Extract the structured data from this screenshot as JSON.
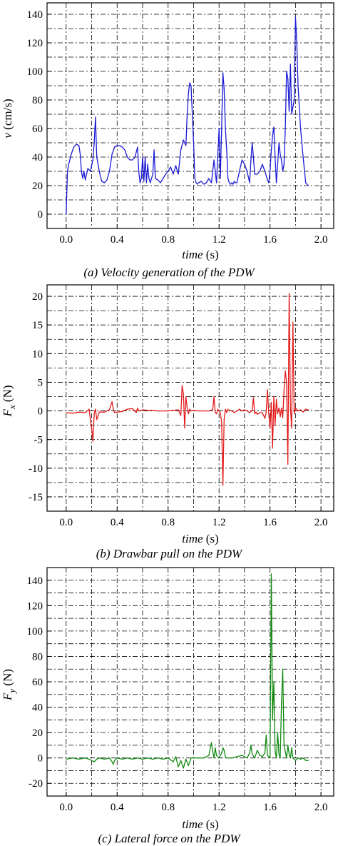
{
  "chart_data": [
    {
      "type": "line",
      "caption": "(a) Velocity generation of the PDW",
      "xlabel": "time (s)",
      "xlabel_italic": "time",
      "xlabel_unit": " (s)",
      "ylabel": "v (cm/s)",
      "ylabel_italic": "v",
      "ylabel_unit": " (cm/s)",
      "xlim": [
        -0.15,
        2.1
      ],
      "ylim": [
        -10,
        148
      ],
      "xticks": [
        "0.0",
        "0.4",
        "0.8",
        "1.2",
        "1.6",
        "2.0"
      ],
      "yticks": [
        "0",
        "20",
        "40",
        "60",
        "80",
        "100",
        "120",
        "140"
      ],
      "grid_x": [
        0.0,
        0.2,
        0.4,
        0.6,
        0.8,
        1.0,
        1.2,
        1.4,
        1.6,
        1.8,
        2.0
      ],
      "grid_y": [
        0,
        10,
        20,
        30,
        40,
        50,
        60,
        70,
        80,
        90,
        100,
        110,
        120,
        130,
        140
      ],
      "grid": true,
      "series": [
        {
          "color": "#1a1ad6",
          "x": [
            0.0,
            0.01,
            0.02,
            0.04,
            0.06,
            0.08,
            0.1,
            0.11,
            0.12,
            0.13,
            0.14,
            0.15,
            0.17,
            0.19,
            0.2,
            0.21,
            0.22,
            0.23,
            0.24,
            0.25,
            0.26,
            0.27,
            0.28,
            0.3,
            0.32,
            0.34,
            0.36,
            0.38,
            0.4,
            0.42,
            0.44,
            0.46,
            0.48,
            0.5,
            0.52,
            0.54,
            0.56,
            0.57,
            0.58,
            0.59,
            0.6,
            0.61,
            0.62,
            0.63,
            0.64,
            0.65,
            0.66,
            0.68,
            0.69,
            0.7,
            0.72,
            0.74,
            0.76,
            0.78,
            0.8,
            0.82,
            0.84,
            0.86,
            0.88,
            0.9,
            0.92,
            0.94,
            0.95,
            0.96,
            0.97,
            0.98,
            0.99,
            1.0,
            1.01,
            1.02,
            1.03,
            1.04,
            1.06,
            1.08,
            1.1,
            1.12,
            1.14,
            1.16,
            1.18,
            1.2,
            1.21,
            1.22,
            1.23,
            1.24,
            1.25,
            1.26,
            1.27,
            1.28,
            1.29,
            1.3,
            1.31,
            1.32,
            1.33,
            1.34,
            1.36,
            1.38,
            1.4,
            1.42,
            1.44,
            1.45,
            1.46,
            1.47,
            1.48,
            1.5,
            1.52,
            1.54,
            1.56,
            1.58,
            1.59,
            1.6,
            1.61,
            1.62,
            1.63,
            1.64,
            1.65,
            1.66,
            1.67,
            1.68,
            1.69,
            1.7,
            1.71,
            1.72,
            1.73,
            1.74,
            1.75,
            1.76,
            1.77,
            1.78,
            1.79,
            1.8,
            1.81,
            1.82,
            1.84,
            1.86,
            1.88,
            1.9
          ],
          "y": [
            0,
            30,
            35,
            42,
            47,
            49,
            48,
            42,
            30,
            25,
            30,
            24,
            32,
            30,
            34,
            38,
            50,
            68,
            40,
            35,
            30,
            26,
            23,
            22,
            24,
            30,
            42,
            47,
            48,
            48,
            47,
            45,
            40,
            38,
            38,
            40,
            47,
            30,
            22,
            25,
            40,
            23,
            40,
            22,
            35,
            25,
            22,
            28,
            45,
            25,
            24,
            22,
            25,
            28,
            30,
            33,
            28,
            34,
            28,
            45,
            52,
            48,
            70,
            85,
            92,
            90,
            70,
            50,
            25,
            22,
            21,
            22,
            23,
            21,
            22,
            25,
            22,
            38,
            22,
            60,
            25,
            60,
            99,
            88,
            60,
            45,
            25,
            22,
            21,
            22,
            21,
            23,
            22,
            22,
            30,
            38,
            35,
            30,
            22,
            38,
            50,
            40,
            28,
            28,
            30,
            35,
            30,
            24,
            22,
            30,
            45,
            55,
            61,
            40,
            22,
            35,
            50,
            42,
            38,
            30,
            35,
            60,
            100,
            95,
            72,
            105,
            70,
            75,
            80,
            138,
            120,
            90,
            60,
            40,
            22,
            20
          ]
        }
      ]
    },
    {
      "type": "line",
      "caption": "(b) Drawbar pull on the PDW",
      "xlabel": "time (s)",
      "xlabel_italic": "time",
      "xlabel_unit": " (s)",
      "ylabel": "Fx (N)",
      "ylabel_italic": "F",
      "ylabel_sub": "x",
      "ylabel_unit": " (N)",
      "xlim": [
        -0.15,
        2.1
      ],
      "ylim": [
        -17.5,
        22
      ],
      "xticks": [
        "0.0",
        "0.4",
        "0.8",
        "1.2",
        "1.6",
        "2.0"
      ],
      "yticks": [
        "-15",
        "-10",
        "-5",
        "0",
        "5",
        "10",
        "15",
        "20"
      ],
      "grid_x": [
        0.0,
        0.2,
        0.4,
        0.6,
        0.8,
        1.0,
        1.2,
        1.4,
        1.6,
        1.8,
        2.0
      ],
      "grid_y": [
        -15,
        -12.5,
        -10,
        -7.5,
        -5,
        -2.5,
        0,
        2.5,
        5,
        7.5,
        10,
        12.5,
        15,
        17.5,
        20
      ],
      "grid": true,
      "series": [
        {
          "color": "#e31a1a",
          "x": [
            0.0,
            0.05,
            0.1,
            0.15,
            0.18,
            0.19,
            0.2,
            0.21,
            0.22,
            0.23,
            0.24,
            0.26,
            0.3,
            0.34,
            0.36,
            0.37,
            0.38,
            0.4,
            0.44,
            0.48,
            0.52,
            0.55,
            0.56,
            0.57,
            0.6,
            0.64,
            0.68,
            0.72,
            0.76,
            0.8,
            0.84,
            0.88,
            0.9,
            0.91,
            0.92,
            0.93,
            0.94,
            0.95,
            0.96,
            0.97,
            0.98,
            1.0,
            1.04,
            1.08,
            1.12,
            1.15,
            1.16,
            1.17,
            1.18,
            1.19,
            1.2,
            1.21,
            1.22,
            1.23,
            1.24,
            1.25,
            1.26,
            1.27,
            1.28,
            1.3,
            1.32,
            1.34,
            1.36,
            1.38,
            1.4,
            1.42,
            1.44,
            1.46,
            1.47,
            1.48,
            1.49,
            1.5,
            1.52,
            1.54,
            1.56,
            1.57,
            1.58,
            1.59,
            1.6,
            1.61,
            1.62,
            1.63,
            1.64,
            1.65,
            1.66,
            1.67,
            1.68,
            1.69,
            1.7,
            1.71,
            1.72,
            1.73,
            1.74,
            1.75,
            1.76,
            1.77,
            1.78,
            1.79,
            1.8,
            1.82,
            1.84,
            1.86,
            1.88,
            1.9
          ],
          "y": [
            -0.3,
            -0.4,
            -0.2,
            -0.3,
            0.3,
            -1.5,
            -3.0,
            -5.3,
            -0.5,
            0.3,
            -1.5,
            -0.2,
            -0.2,
            0.2,
            1.6,
            0.3,
            -0.3,
            -0.2,
            -0.1,
            0.3,
            0.4,
            -0.3,
            0.5,
            0.0,
            0.2,
            0.1,
            0.1,
            0.0,
            0.0,
            0.0,
            0.1,
            0.2,
            -0.8,
            4.4,
            3.0,
            -3.0,
            2.5,
            0.5,
            -0.5,
            0.3,
            0.0,
            0.1,
            0.0,
            0.0,
            0.0,
            0.2,
            2.5,
            -0.3,
            -0.5,
            0.3,
            0.0,
            -0.3,
            -2.0,
            -13.0,
            -1.5,
            0.3,
            -0.3,
            0.3,
            0.1,
            0.0,
            -0.3,
            0.0,
            0.3,
            0.0,
            0.2,
            0.0,
            -0.3,
            0.1,
            2.3,
            -0.5,
            -0.2,
            -0.6,
            -0.3,
            -0.3,
            -1.3,
            -0.2,
            3.7,
            -0.5,
            -3.0,
            1.5,
            -6.5,
            2.5,
            -2.5,
            2.0,
            -0.5,
            0.5,
            -1.0,
            0.5,
            -1.2,
            3.5,
            7.0,
            5.0,
            -9.3,
            20.5,
            0.5,
            -3.0,
            15.5,
            -0.5,
            0.5,
            0.0,
            0.2,
            -0.2,
            0.3,
            0.2
          ]
        }
      ]
    },
    {
      "type": "line",
      "caption": "(c) Lateral force on the PDW",
      "xlabel": "time (s)",
      "xlabel_italic": "time",
      "xlabel_unit": " (s)",
      "ylabel": "Fy (N)",
      "ylabel_italic": "F",
      "ylabel_sub": "y",
      "ylabel_unit": " (N)",
      "xlim": [
        -0.15,
        2.1
      ],
      "ylim": [
        -30,
        150
      ],
      "xticks": [
        "0.0",
        "0.4",
        "0.8",
        "1.2",
        "1.6",
        "2.0"
      ],
      "yticks": [
        "-20",
        "0",
        "20",
        "40",
        "60",
        "80",
        "100",
        "120",
        "140"
      ],
      "grid_x": [
        0.0,
        0.2,
        0.4,
        0.6,
        0.8,
        1.0,
        1.2,
        1.4,
        1.6,
        1.8,
        2.0
      ],
      "grid_y": [
        -20,
        -10,
        0,
        10,
        20,
        30,
        40,
        50,
        60,
        70,
        80,
        90,
        100,
        110,
        120,
        130,
        140
      ],
      "grid": true,
      "series": [
        {
          "color": "#0f8a0f",
          "x": [
            0.0,
            0.05,
            0.1,
            0.15,
            0.18,
            0.2,
            0.22,
            0.24,
            0.26,
            0.3,
            0.34,
            0.36,
            0.37,
            0.38,
            0.4,
            0.44,
            0.48,
            0.52,
            0.56,
            0.6,
            0.64,
            0.68,
            0.72,
            0.76,
            0.8,
            0.84,
            0.86,
            0.88,
            0.9,
            0.92,
            0.94,
            0.96,
            0.98,
            1.0,
            1.04,
            1.08,
            1.12,
            1.14,
            1.15,
            1.16,
            1.17,
            1.18,
            1.2,
            1.22,
            1.23,
            1.24,
            1.25,
            1.26,
            1.28,
            1.3,
            1.34,
            1.38,
            1.42,
            1.44,
            1.45,
            1.46,
            1.48,
            1.5,
            1.52,
            1.54,
            1.56,
            1.57,
            1.58,
            1.6,
            1.61,
            1.62,
            1.63,
            1.64,
            1.65,
            1.66,
            1.67,
            1.68,
            1.69,
            1.7,
            1.71,
            1.72,
            1.73,
            1.74,
            1.75,
            1.76,
            1.77,
            1.78,
            1.8,
            1.82,
            1.84,
            1.86,
            1.88,
            1.9
          ],
          "y": [
            -1,
            0,
            -1,
            0,
            -1,
            -2,
            -3,
            -1,
            0,
            -1,
            0,
            -3,
            -5,
            -2,
            0,
            -1,
            0,
            -1,
            0,
            -1,
            0,
            -1,
            0,
            -1,
            0,
            -3,
            1,
            -7,
            -2,
            -8,
            -1,
            -6,
            0,
            0,
            0,
            0,
            2,
            12,
            5,
            0,
            8,
            2,
            0,
            4,
            8,
            6,
            1,
            0,
            0,
            0,
            1,
            2,
            0,
            4,
            10,
            3,
            0,
            6,
            2,
            1,
            4,
            18,
            2,
            0,
            145,
            30,
            60,
            5,
            0,
            20,
            3,
            0,
            43,
            70,
            10,
            5,
            0,
            10,
            3,
            0,
            8,
            0,
            -2,
            0,
            -1,
            0,
            -2,
            -2
          ]
        }
      ]
    }
  ]
}
